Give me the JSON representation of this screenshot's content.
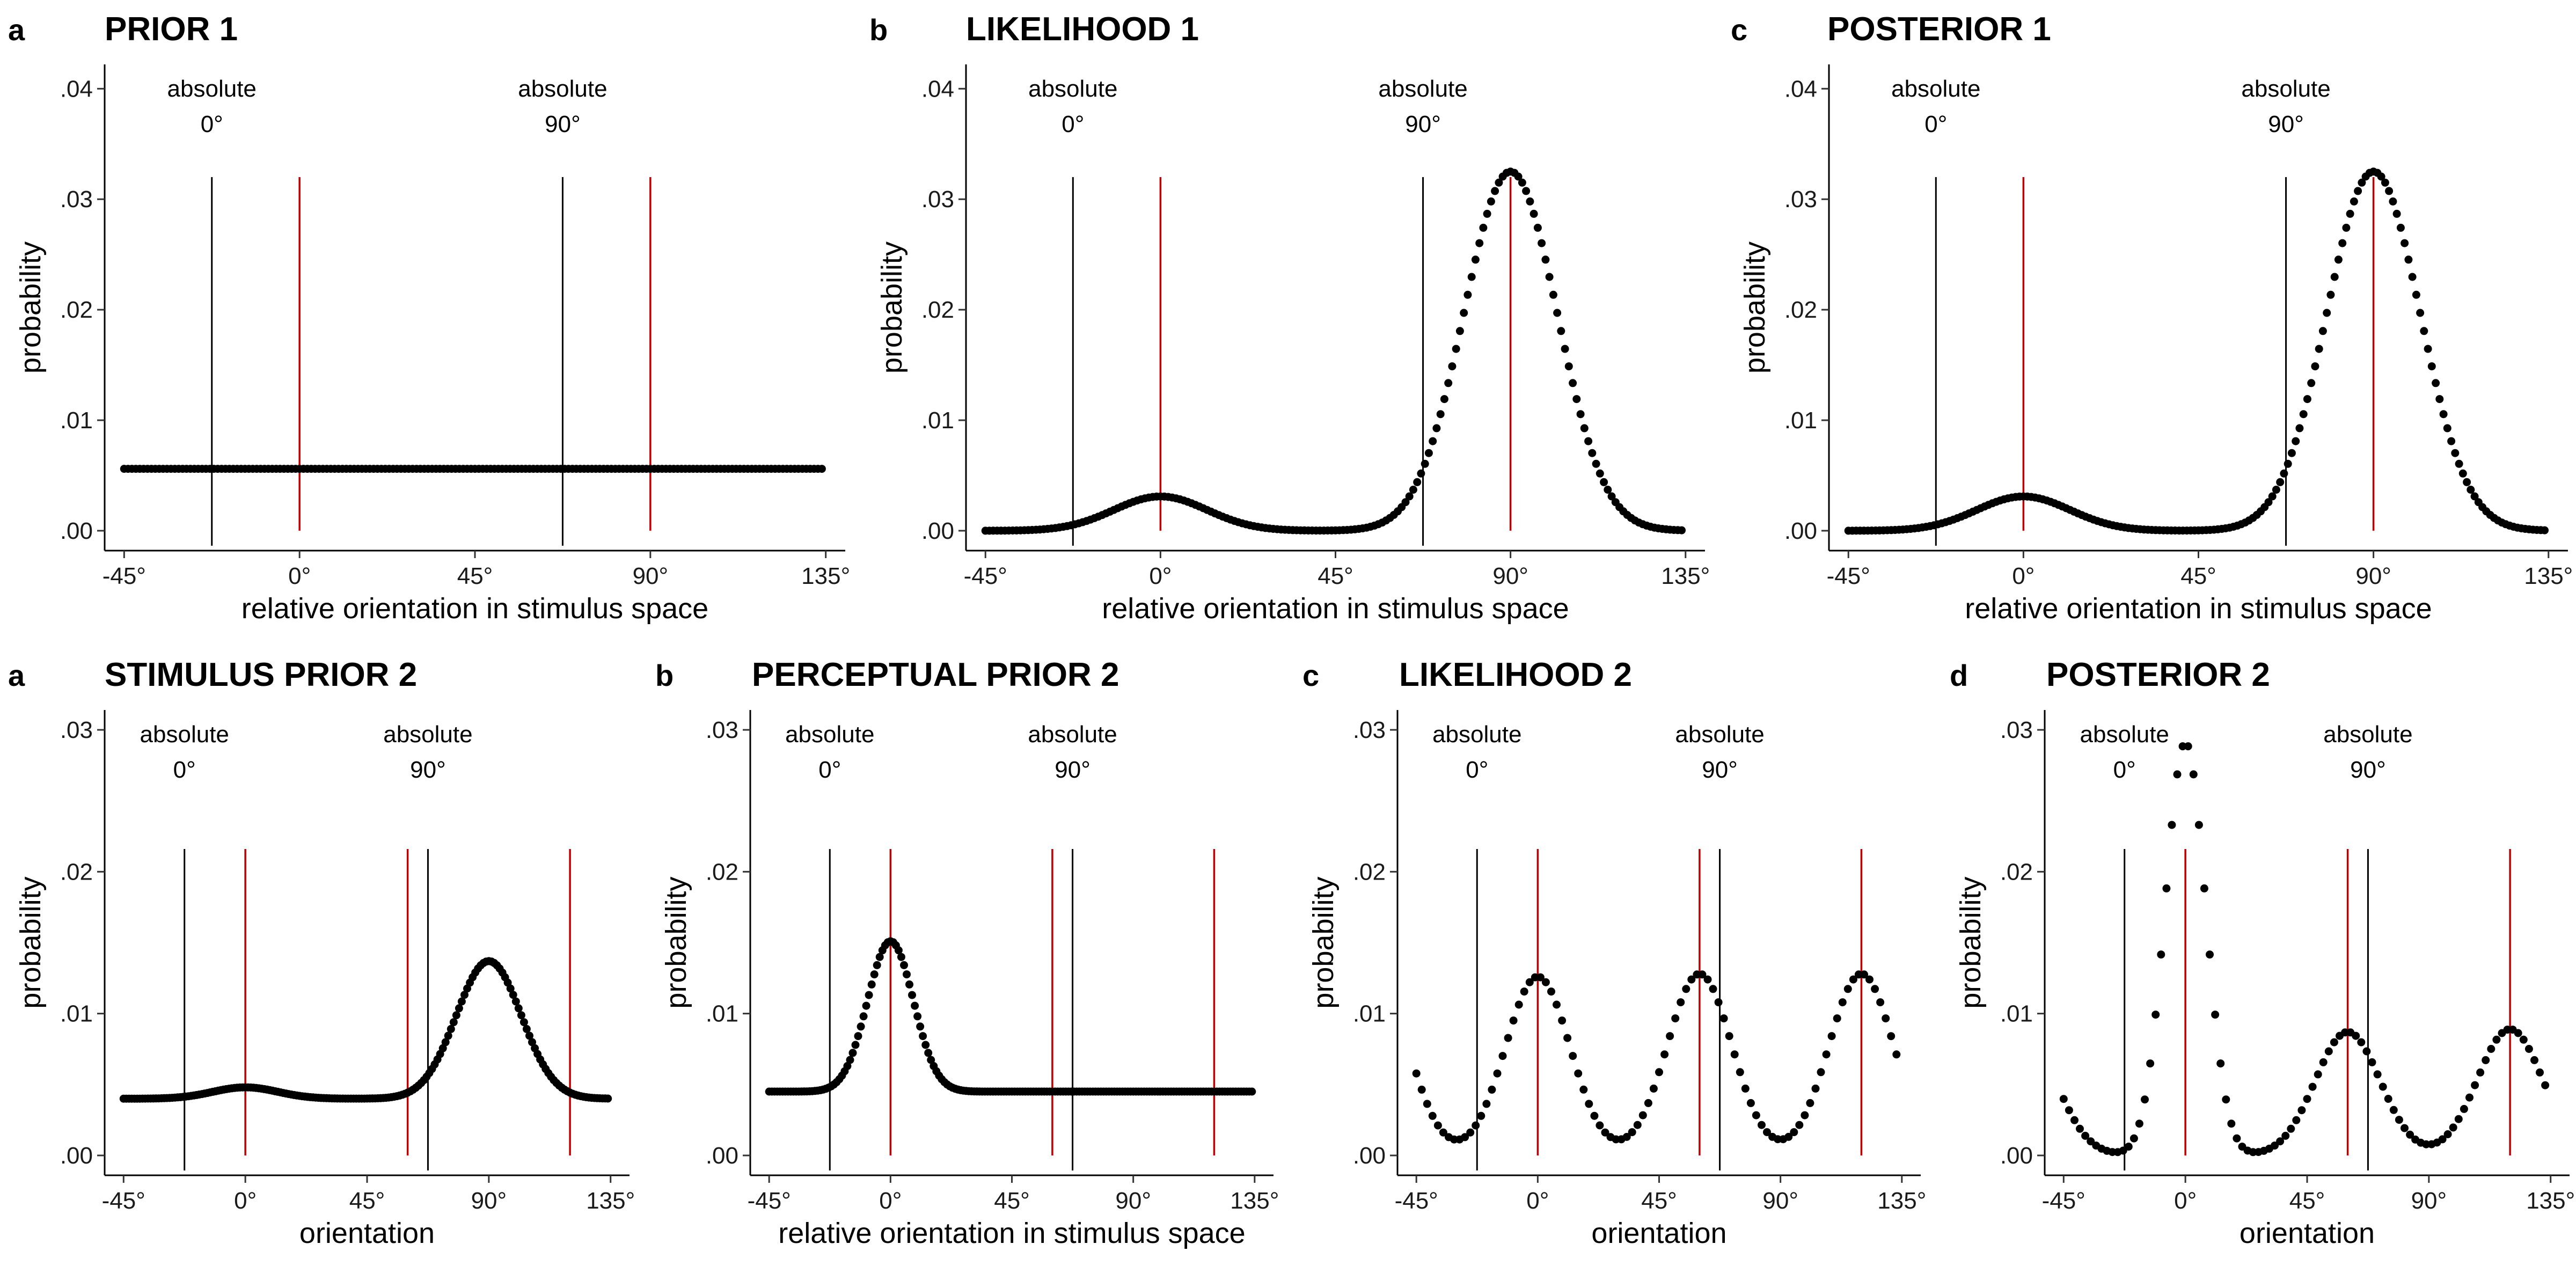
{
  "colors": {
    "ref_line": "#000000",
    "marker_line": "#c00000",
    "points": "#000000"
  },
  "chart_data": [
    {
      "panel": "a",
      "title": "PRIOR 1",
      "type": "scatter",
      "xlabel": "relative orientation in stimulus space",
      "ylabel": "probability",
      "xlim": [
        -50,
        140
      ],
      "ylim": [
        -0.0018,
        0.0422
      ],
      "xticks": [
        -45,
        0,
        45,
        90,
        135
      ],
      "xtick_labels": [
        "-45°",
        "0°",
        "45°",
        "90°",
        "135°"
      ],
      "yticks": [
        0,
        0.01,
        0.02,
        0.03,
        0.04
      ],
      "ytick_labels": [
        ".00",
        ".01",
        ".02",
        ".03",
        ".04"
      ],
      "ref_lines": [
        {
          "x": -22.5,
          "label_top": "absolute",
          "label_bottom": "0°"
        },
        {
          "x": 67.5,
          "label_top": "absolute",
          "label_bottom": "90°"
        }
      ],
      "marker_lines": [
        0,
        90
      ],
      "line_top": 0.032,
      "series": {
        "x_start": -45,
        "x_end": 134,
        "x_step": 1,
        "components": [
          {
            "base": 0.0056
          }
        ]
      }
    },
    {
      "panel": "b",
      "title": "LIKELIHOOD 1",
      "type": "scatter",
      "xlabel": "relative orientation in stimulus space",
      "ylabel": "probability",
      "xlim": [
        -50,
        140
      ],
      "ylim": [
        -0.0018,
        0.0422
      ],
      "xticks": [
        -45,
        0,
        45,
        90,
        135
      ],
      "xtick_labels": [
        "-45°",
        "0°",
        "45°",
        "90°",
        "135°"
      ],
      "yticks": [
        0,
        0.01,
        0.02,
        0.03,
        0.04
      ],
      "ytick_labels": [
        ".00",
        ".01",
        ".02",
        ".03",
        ".04"
      ],
      "ref_lines": [
        {
          "x": -22.5,
          "label_top": "absolute",
          "label_bottom": "0°"
        },
        {
          "x": 67.5,
          "label_top": "absolute",
          "label_bottom": "90°"
        }
      ],
      "marker_lines": [
        0,
        90
      ],
      "line_top": 0.032,
      "series": {
        "x_start": -45,
        "x_end": 134,
        "x_step": 1,
        "components": [
          {
            "base": 0.0
          },
          {
            "amp": 0.0325,
            "center": 90,
            "sigma": 12
          },
          {
            "amp": 0.0031,
            "center": 0,
            "sigma": 12
          }
        ]
      }
    },
    {
      "panel": "c",
      "title": "POSTERIOR 1",
      "type": "scatter",
      "xlabel": "relative orientation in stimulus space",
      "ylabel": "probability",
      "xlim": [
        -50,
        140
      ],
      "ylim": [
        -0.0018,
        0.0422
      ],
      "xticks": [
        -45,
        0,
        45,
        90,
        135
      ],
      "xtick_labels": [
        "-45°",
        "0°",
        "45°",
        "90°",
        "135°"
      ],
      "yticks": [
        0,
        0.01,
        0.02,
        0.03,
        0.04
      ],
      "ytick_labels": [
        ".00",
        ".01",
        ".02",
        ".03",
        ".04"
      ],
      "ref_lines": [
        {
          "x": -22.5,
          "label_top": "absolute",
          "label_bottom": "0°"
        },
        {
          "x": 67.5,
          "label_top": "absolute",
          "label_bottom": "90°"
        }
      ],
      "marker_lines": [
        0,
        90
      ],
      "line_top": 0.032,
      "series": {
        "x_start": -45,
        "x_end": 134,
        "x_step": 1,
        "components": [
          {
            "base": 0.0
          },
          {
            "amp": 0.0325,
            "center": 90,
            "sigma": 12
          },
          {
            "amp": 0.0031,
            "center": 0,
            "sigma": 12
          }
        ]
      }
    },
    {
      "panel": "a",
      "title": "STIMULUS PRIOR 2",
      "type": "scatter",
      "xlabel": "orientation",
      "ylabel": "probability",
      "xlim": [
        -52,
        142
      ],
      "ylim": [
        -0.0014,
        0.0314
      ],
      "xticks": [
        -45,
        0,
        45,
        90,
        135
      ],
      "xtick_labels": [
        "-45°",
        "0°",
        "45°",
        "90°",
        "135°"
      ],
      "yticks": [
        0,
        0.01,
        0.02,
        0.03
      ],
      "ytick_labels": [
        ".00",
        ".01",
        ".02",
        ".03"
      ],
      "ref_lines": [
        {
          "x": -22.5,
          "label_top": "absolute",
          "label_bottom": "0°"
        },
        {
          "x": 67.5,
          "label_top": "absolute",
          "label_bottom": "90°"
        }
      ],
      "marker_lines": [
        0,
        60,
        120
      ],
      "line_top": 0.0216,
      "series": {
        "x_start": -45,
        "x_end": 134,
        "x_step": 1,
        "components": [
          {
            "base": 0.004
          },
          {
            "amp": 0.0097,
            "center": 90,
            "sigma": 12
          },
          {
            "amp": 0.0008,
            "center": 0,
            "sigma": 12
          }
        ]
      }
    },
    {
      "panel": "b",
      "title": "PERCEPTUAL PRIOR 2",
      "type": "scatter",
      "xlabel": "relative orientation in stimulus space",
      "ylabel": "probability",
      "xlim": [
        -52,
        142
      ],
      "ylim": [
        -0.0014,
        0.0314
      ],
      "xticks": [
        -45,
        0,
        45,
        90,
        135
      ],
      "xtick_labels": [
        "-45°",
        "0°",
        "45°",
        "90°",
        "135°"
      ],
      "yticks": [
        0,
        0.01,
        0.02,
        0.03
      ],
      "ytick_labels": [
        ".00",
        ".01",
        ".02",
        ".03"
      ],
      "ref_lines": [
        {
          "x": -22.5,
          "label_top": "absolute",
          "label_bottom": "0°"
        },
        {
          "x": 67.5,
          "label_top": "absolute",
          "label_bottom": "90°"
        }
      ],
      "marker_lines": [
        0,
        60,
        120
      ],
      "line_top": 0.0216,
      "series": {
        "x_start": -45,
        "x_end": 134,
        "x_step": 1,
        "components": [
          {
            "base": 0.0045
          },
          {
            "amp": 0.0106,
            "center": 0,
            "sigma": 8.5
          }
        ]
      }
    },
    {
      "panel": "c",
      "title": "LIKELIHOOD 2",
      "type": "scatter",
      "xlabel": "orientation",
      "ylabel": "probability",
      "xlim": [
        -52,
        142
      ],
      "ylim": [
        -0.0014,
        0.0314
      ],
      "xticks": [
        -45,
        0,
        45,
        90,
        135
      ],
      "xtick_labels": [
        "-45°",
        "0°",
        "45°",
        "90°",
        "135°"
      ],
      "yticks": [
        0,
        0.01,
        0.02,
        0.03
      ],
      "ytick_labels": [
        ".00",
        ".01",
        ".02",
        ".03"
      ],
      "ref_lines": [
        {
          "x": -22.5,
          "label_top": "absolute",
          "label_bottom": "0°"
        },
        {
          "x": 67.5,
          "label_top": "absolute",
          "label_bottom": "90°"
        }
      ],
      "marker_lines": [
        0,
        60,
        120
      ],
      "line_top": 0.0216,
      "series": {
        "x_start": -45,
        "x_end": 133,
        "x_step": 2,
        "components": [
          {
            "base": 0.0
          },
          {
            "amp": 0.0126,
            "center": 0,
            "sigma": 12
          },
          {
            "amp": 0.0128,
            "center": 60,
            "sigma": 12
          },
          {
            "amp": 0.0128,
            "center": 120,
            "sigma": 12
          },
          {
            "amp": 0.0126,
            "center": -60,
            "sigma": 12
          }
        ]
      }
    },
    {
      "panel": "d",
      "title": "POSTERIOR 2",
      "type": "scatter",
      "xlabel": "orientation",
      "ylabel": "probability",
      "xlim": [
        -52,
        142
      ],
      "ylim": [
        -0.0014,
        0.0314
      ],
      "xticks": [
        -45,
        0,
        45,
        90,
        135
      ],
      "xtick_labels": [
        "-45°",
        "0°",
        "45°",
        "90°",
        "135°"
      ],
      "yticks": [
        0,
        0.01,
        0.02,
        0.03
      ],
      "ytick_labels": [
        ".00",
        ".01",
        ".02",
        ".03"
      ],
      "ref_lines": [
        {
          "x": -22.5,
          "label_top": "absolute",
          "label_bottom": "0°"
        },
        {
          "x": 67.5,
          "label_top": "absolute",
          "label_bottom": "90°"
        }
      ],
      "marker_lines": [
        0,
        60,
        120
      ],
      "line_top": 0.0216,
      "series": {
        "x_start": -45,
        "x_end": 133,
        "x_step": 2,
        "components": [
          {
            "base": 0.0
          },
          {
            "amp": 0.0291,
            "center": 0,
            "sigma": 7.5
          },
          {
            "amp": 0.0087,
            "center": 60,
            "sigma": 12
          },
          {
            "amp": 0.0089,
            "center": 120,
            "sigma": 12
          },
          {
            "amp": 0.0087,
            "center": -60,
            "sigma": 12
          }
        ]
      }
    }
  ]
}
